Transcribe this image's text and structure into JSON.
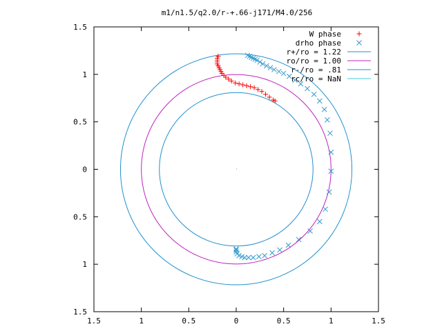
{
  "chart_data": {
    "type": "scatter",
    "title": "m1/n1.5/q2.0/r-+.66-j171/M4.0/256",
    "xlabel": "",
    "ylabel": "",
    "xlim": [
      -1.5,
      1.5
    ],
    "ylim": [
      -1.5,
      1.5
    ],
    "x_ticks": [
      -1.5,
      -1,
      -0.5,
      0,
      0.5,
      1,
      1.5
    ],
    "x_tick_labels": [
      "1.5",
      "1",
      "0.5",
      "0",
      "0.5",
      "1",
      "1.5"
    ],
    "y_ticks": [
      1.5,
      1,
      0.5,
      0,
      -0.5,
      -1,
      -1.5
    ],
    "y_tick_labels": [
      "1.5",
      "1",
      "0.5",
      "0",
      "0.5",
      "1",
      "1.5"
    ],
    "grid": false,
    "legend_position": "top-right",
    "series": [
      {
        "name": "W phase",
        "kind": "points",
        "marker": "plus",
        "color": "#ff0000",
        "points": [
          [
            -0.19,
            1.19
          ],
          [
            -0.2,
            1.17
          ],
          [
            -0.2,
            1.15
          ],
          [
            -0.2,
            1.13
          ],
          [
            -0.2,
            1.11
          ],
          [
            -0.19,
            1.09
          ],
          [
            -0.18,
            1.07
          ],
          [
            -0.17,
            1.05
          ],
          [
            -0.16,
            1.03
          ],
          [
            -0.15,
            1.01
          ],
          [
            -0.13,
            0.99
          ],
          [
            -0.11,
            0.97
          ],
          [
            -0.08,
            0.95
          ],
          [
            -0.05,
            0.93
          ],
          [
            -0.01,
            0.91
          ],
          [
            0.03,
            0.9
          ],
          [
            0.07,
            0.89
          ],
          [
            0.11,
            0.88
          ],
          [
            0.15,
            0.87
          ],
          [
            0.19,
            0.86
          ],
          [
            0.23,
            0.84
          ],
          [
            0.27,
            0.82
          ],
          [
            0.31,
            0.79
          ],
          [
            0.35,
            0.76
          ],
          [
            0.39,
            0.73
          ],
          [
            0.41,
            0.72
          ]
        ]
      },
      {
        "name": "drho phase",
        "kind": "points",
        "marker": "cross",
        "color": "#3399cc",
        "points": [
          [
            0.12,
            1.2
          ],
          [
            0.14,
            1.19
          ],
          [
            0.16,
            1.18
          ],
          [
            0.18,
            1.17
          ],
          [
            0.2,
            1.16
          ],
          [
            0.22,
            1.15
          ],
          [
            0.25,
            1.13
          ],
          [
            0.28,
            1.11
          ],
          [
            0.32,
            1.09
          ],
          [
            0.36,
            1.07
          ],
          [
            0.4,
            1.05
          ],
          [
            0.45,
            1.03
          ],
          [
            0.5,
            1.01
          ],
          [
            0.56,
            0.98
          ],
          [
            0.62,
            0.94
          ],
          [
            0.68,
            0.9
          ],
          [
            0.75,
            0.85
          ],
          [
            0.82,
            0.79
          ],
          [
            0.88,
            0.72
          ],
          [
            0.93,
            0.63
          ],
          [
            0.96,
            0.52
          ],
          [
            0.99,
            0.38
          ],
          [
            1.0,
            0.18
          ],
          [
            1.0,
            -0.02
          ],
          [
            0.98,
            -0.24
          ],
          [
            0.94,
            -0.42
          ],
          [
            0.88,
            -0.55
          ],
          [
            0.78,
            -0.65
          ],
          [
            0.66,
            -0.74
          ],
          [
            0.55,
            -0.8
          ],
          [
            0.46,
            -0.85
          ],
          [
            0.38,
            -0.88
          ],
          [
            0.3,
            -0.91
          ],
          [
            0.24,
            -0.92
          ],
          [
            0.18,
            -0.93
          ],
          [
            0.13,
            -0.93
          ],
          [
            0.09,
            -0.93
          ],
          [
            0.06,
            -0.92
          ],
          [
            0.03,
            -0.91
          ],
          [
            0.01,
            -0.89
          ],
          [
            0.0,
            -0.87
          ],
          [
            0.0,
            -0.85
          ],
          [
            0.0,
            -0.84
          ]
        ]
      },
      {
        "name": "r+/ro = 1.22",
        "kind": "circle",
        "radius": 1.22,
        "color": "#1f8fcf"
      },
      {
        "name": "ro/ro = 1.00",
        "kind": "circle",
        "radius": 1.0,
        "color": "#c020c0"
      },
      {
        "name": "r-/ro = .81",
        "kind": "circle",
        "radius": 0.81,
        "color": "#1f8fcf"
      },
      {
        "name": "rc/ro = NaN",
        "kind": "circle",
        "radius": null,
        "color": "#40c8e0"
      }
    ]
  }
}
